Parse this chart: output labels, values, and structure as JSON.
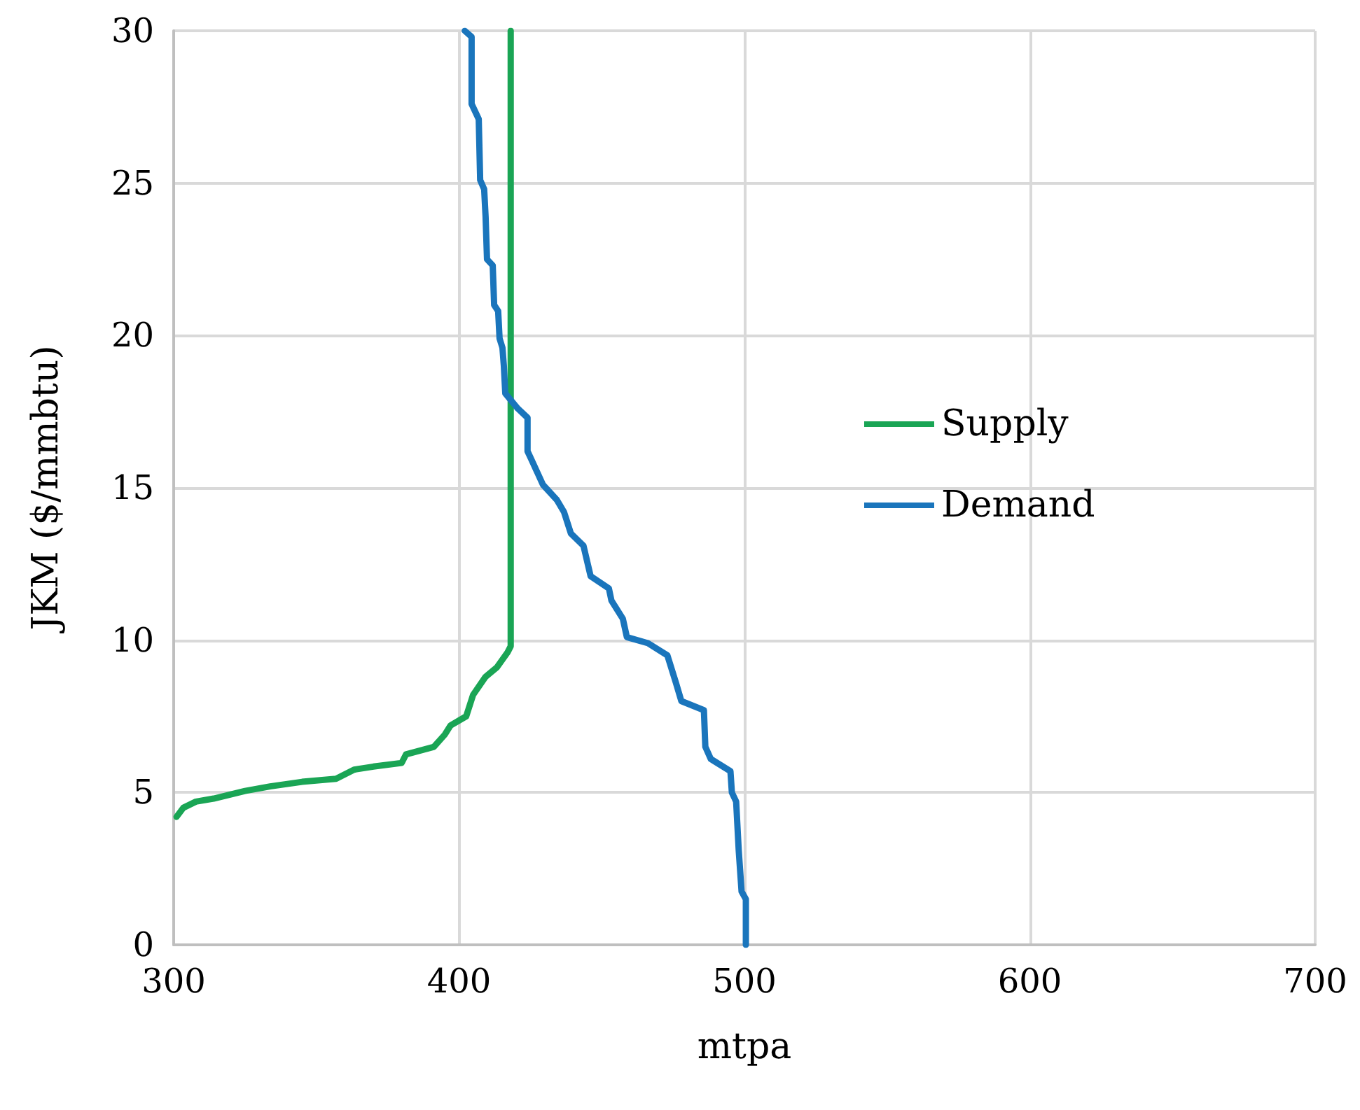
{
  "chart_data": {
    "type": "line",
    "xlabel": "mtpa",
    "ylabel": "JKM ($/mmbtu)",
    "xlim": [
      300,
      700
    ],
    "xticks": [
      300,
      400,
      500,
      600,
      700
    ],
    "ylim": [
      0,
      30
    ],
    "yticks": [
      0,
      5,
      10,
      15,
      20,
      25,
      30
    ],
    "grid": true,
    "legend": "right",
    "marker": "none",
    "line_style": "solid",
    "series": [
      {
        "name": "Supply",
        "color": "#1aa555",
        "x": [
          301,
          303.4,
          307.8,
          314,
          325,
          333.8,
          345,
          356.9,
          363.2,
          370,
          379.9,
          381.4,
          391.2,
          395,
          397,
          402.5,
          404.9,
          409.3,
          413.2,
          417,
          418.1,
          418.1,
          418.1
        ],
        "values": [
          4.2,
          4.5,
          4.7,
          4.8,
          5.05,
          5.2,
          5.35,
          5.45,
          5.75,
          5.85,
          5.97,
          6.25,
          6.5,
          6.9,
          7.2,
          7.5,
          8.2,
          8.8,
          9.1,
          9.6,
          9.8,
          11.3,
          30
        ]
      },
      {
        "name": "Demand",
        "color": "#1a75bc",
        "x": [
          500.5,
          500.5,
          499,
          498,
          497.1,
          495.6,
          495.1,
          488.2,
          486.3,
          485.8,
          477.9,
          476,
          473,
          466.2,
          458.8,
          457.4,
          453.4,
          452.5,
          446.1,
          443.6,
          439.2,
          436.8,
          434.3,
          429.4,
          425.5,
          424,
          424,
          420.6,
          416.2,
          415.7,
          415.2,
          414.2,
          413.7,
          412.3,
          411.8,
          409.8,
          409.3,
          408.8,
          407.4,
          406.9,
          404.4,
          404.4,
          402
        ],
        "values": [
          0,
          1.5,
          1.75,
          3.1,
          4.7,
          5.0,
          5.7,
          6.1,
          6.5,
          7.7,
          8.0,
          8.6,
          9.5,
          9.9,
          10.1,
          10.7,
          11.3,
          11.7,
          12.1,
          13.1,
          13.5,
          14.2,
          14.6,
          15.1,
          15.9,
          16.2,
          17.3,
          17.6,
          18.1,
          19.0,
          19.6,
          19.9,
          20.8,
          21.0,
          22.3,
          22.5,
          23.9,
          24.8,
          25.1,
          27.1,
          27.6,
          29.8,
          30
        ]
      }
    ]
  }
}
